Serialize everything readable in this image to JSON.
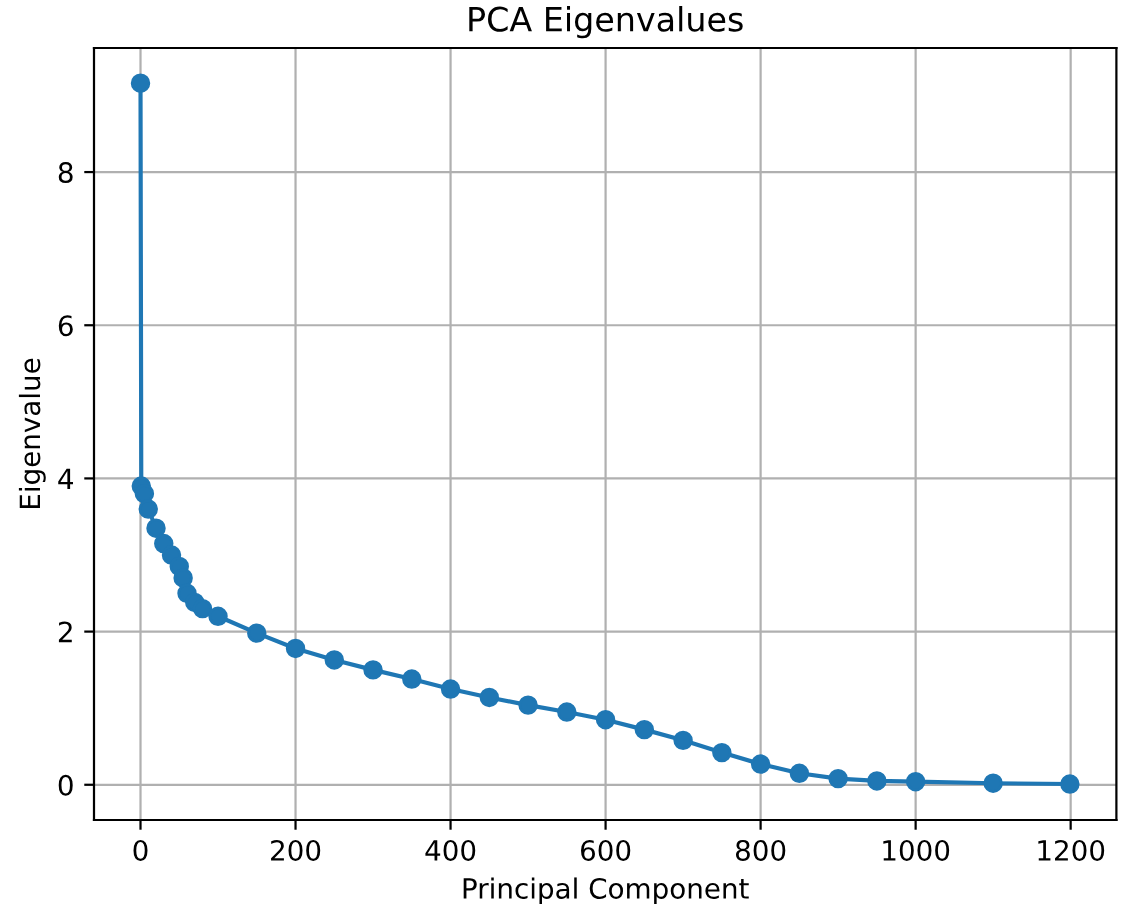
{
  "chart_data": {
    "type": "line",
    "title": "PCA Eigenvalues",
    "xlabel": "Principal Component",
    "ylabel": "Eigenvalue",
    "series": [
      {
        "color": "#1f77b4",
        "x": [
          0,
          1,
          5,
          10,
          20,
          30,
          40,
          50,
          55,
          60,
          70,
          80,
          100,
          150,
          200,
          250,
          300,
          350,
          400,
          450,
          500,
          550,
          600,
          650,
          700,
          750,
          800,
          850,
          900,
          950,
          1000,
          1100,
          1199
        ],
        "values": [
          9.16,
          3.9,
          3.8,
          3.6,
          3.35,
          3.15,
          3.0,
          2.85,
          2.7,
          2.5,
          2.38,
          2.3,
          2.2,
          1.98,
          1.78,
          1.63,
          1.5,
          1.38,
          1.25,
          1.14,
          1.04,
          0.95,
          0.85,
          0.72,
          0.58,
          0.42,
          0.27,
          0.15,
          0.08,
          0.05,
          0.04,
          0.02,
          0.01
        ]
      }
    ],
    "xlim": [
      -60,
      1259
    ],
    "ylim": [
      -0.46,
      9.62
    ],
    "xticks": [
      0,
      200,
      400,
      600,
      800,
      1000,
      1200
    ],
    "yticks": [
      0,
      2,
      4,
      6,
      8
    ],
    "grid": true,
    "marker": "circle",
    "line_style": "solid"
  }
}
